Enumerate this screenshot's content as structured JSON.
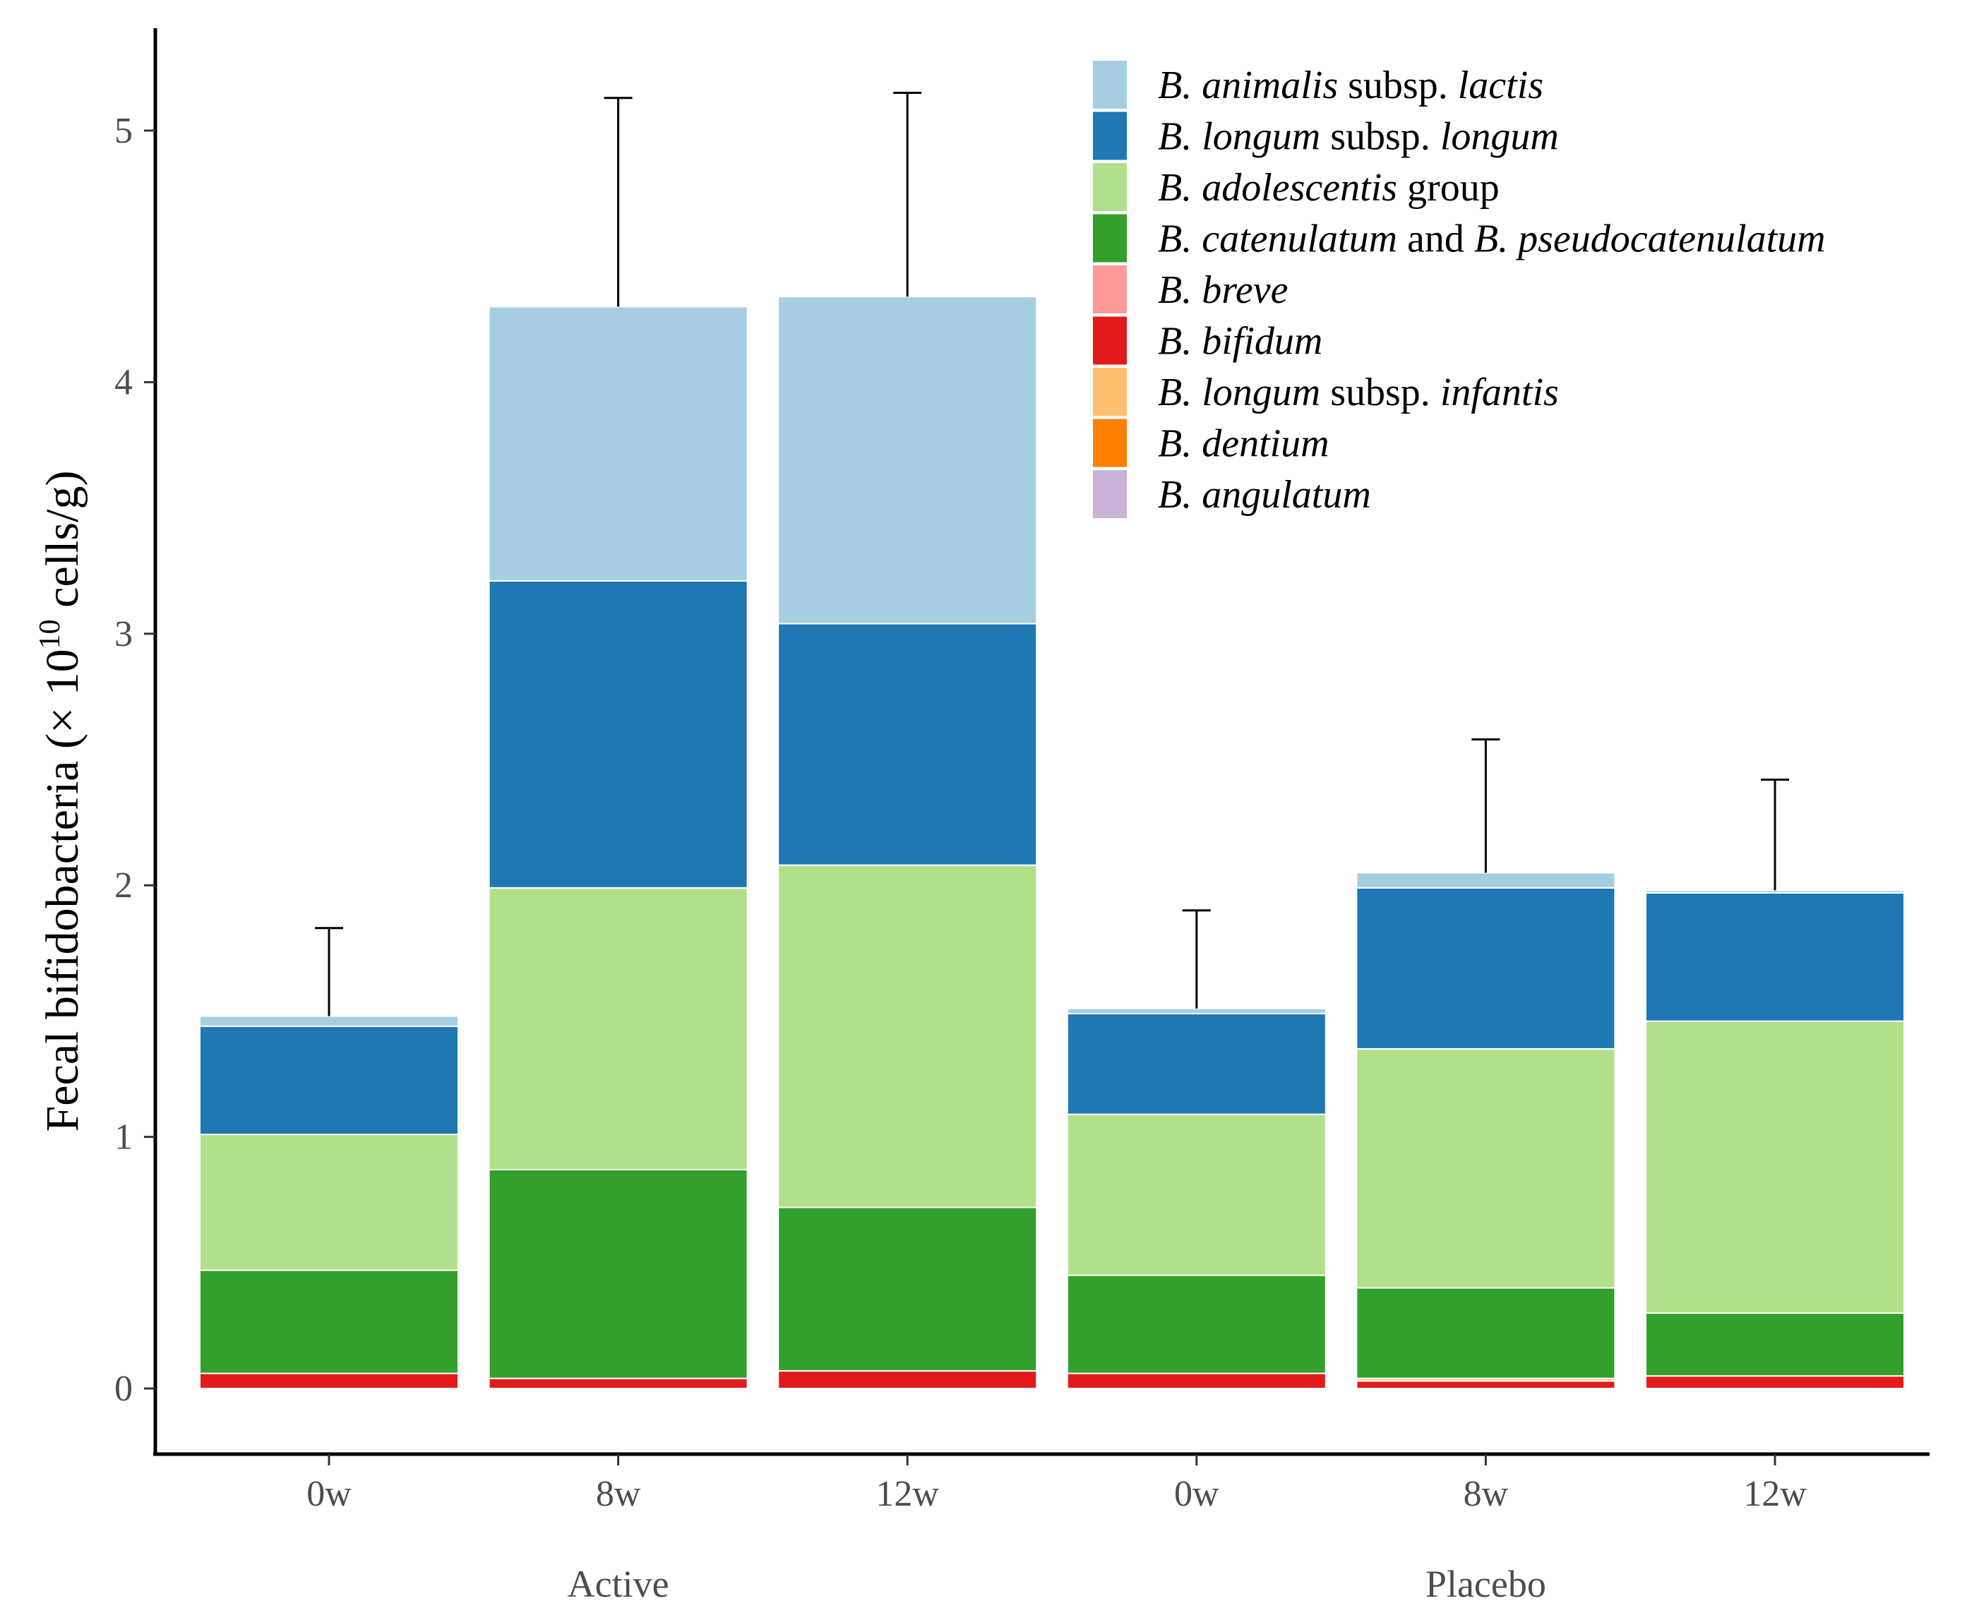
{
  "chart_data": {
    "type": "bar",
    "stacked": true,
    "title": "",
    "xlabel": "",
    "ylabel": {
      "prefix": "Fecal bifidobacteria (× 10",
      "superscript": "10",
      "suffix": " cells/g)"
    },
    "ylim": [
      0,
      5.25
    ],
    "yticks": [
      0,
      1,
      2,
      3,
      4,
      5
    ],
    "categories": [
      "0w",
      "8w",
      "12w",
      "0w",
      "8w",
      "12w"
    ],
    "groups": [
      {
        "label": "Active",
        "category_indices": [
          0,
          1,
          2
        ]
      },
      {
        "label": "Placebo",
        "category_indices": [
          3,
          4,
          5
        ]
      }
    ],
    "series": [
      {
        "name": "B. bifidum",
        "color": "#e31a1c",
        "values": [
          0.06,
          0.04,
          0.07,
          0.06,
          0.03,
          0.05
        ]
      },
      {
        "name": "B. longum subsp. infantis",
        "color": "#fdbf6f",
        "values": [
          0,
          0,
          0,
          0,
          0.01,
          0
        ]
      },
      {
        "name": "B. catenulatum and B. pseudocatenulatum",
        "color": "#33a02c",
        "values": [
          0.41,
          0.83,
          0.65,
          0.39,
          0.36,
          0.25
        ]
      },
      {
        "name": "B. adolescentis group",
        "color": "#b2df8a",
        "values": [
          0.54,
          1.12,
          1.36,
          0.64,
          0.95,
          1.16
        ]
      },
      {
        "name": "B. longum subsp. longum",
        "color": "#1f78b4",
        "values": [
          0.43,
          1.22,
          0.96,
          0.4,
          0.64,
          0.51
        ]
      },
      {
        "name": "B. animalis subsp. lactis",
        "color": "#a6cee3",
        "values": [
          0.04,
          1.09,
          1.3,
          0.02,
          0.06,
          0.01
        ]
      }
    ],
    "error_upper": [
      1.83,
      5.13,
      5.15,
      1.9,
      2.58,
      2.42
    ],
    "legend": {
      "position": "top-right",
      "entries": [
        {
          "color": "#a6cee3",
          "parts": [
            {
              "text": "B. animalis",
              "italic": true
            },
            {
              "text": " subsp. ",
              "italic": false
            },
            {
              "text": "lactis",
              "italic": true
            }
          ]
        },
        {
          "color": "#1f78b4",
          "parts": [
            {
              "text": "B. longum",
              "italic": true
            },
            {
              "text": " subsp. ",
              "italic": false
            },
            {
              "text": "longum",
              "italic": true
            }
          ]
        },
        {
          "color": "#b2df8a",
          "parts": [
            {
              "text": "B. adolescentis",
              "italic": true
            },
            {
              "text": " group",
              "italic": false
            }
          ]
        },
        {
          "color": "#33a02c",
          "parts": [
            {
              "text": "B. catenulatum",
              "italic": true
            },
            {
              "text": " and ",
              "italic": false
            },
            {
              "text": "B. pseudocatenulatum",
              "italic": true
            }
          ]
        },
        {
          "color": "#fb9a99",
          "parts": [
            {
              "text": "B. breve",
              "italic": true
            }
          ]
        },
        {
          "color": "#e31a1c",
          "parts": [
            {
              "text": "B. bifidum",
              "italic": true
            }
          ]
        },
        {
          "color": "#fdbf6f",
          "parts": [
            {
              "text": "B. longum",
              "italic": true
            },
            {
              "text": " subsp. ",
              "italic": false
            },
            {
              "text": "infantis",
              "italic": true
            }
          ]
        },
        {
          "color": "#ff7f00",
          "parts": [
            {
              "text": "B. dentium",
              "italic": true
            }
          ]
        },
        {
          "color": "#cab2d6",
          "parts": [
            {
              "text": "B. angulatum",
              "italic": true
            }
          ]
        }
      ]
    }
  }
}
